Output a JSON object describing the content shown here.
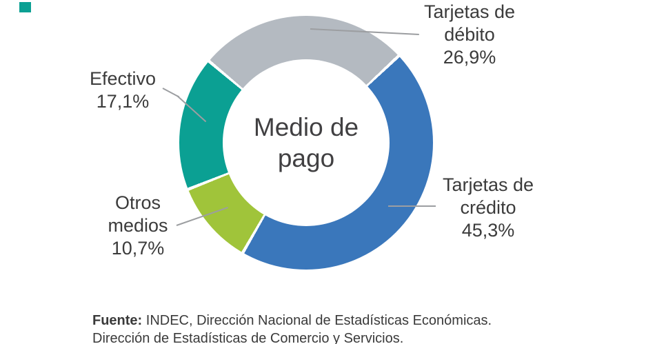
{
  "chart_data": {
    "type": "pie",
    "donut": true,
    "title": "Medio de pago",
    "start_from_top_deg": -50,
    "gap_deg": 1.4,
    "slices": [
      {
        "label": "Tarjetas de débito",
        "value": 26.9,
        "display": "26,9%",
        "color": "#b4bac1"
      },
      {
        "label": "Tarjetas de crédito",
        "value": 45.3,
        "display": "45,3%",
        "color": "#3a77bb"
      },
      {
        "label": "Otros medios",
        "value": 10.7,
        "display": "10,7%",
        "color": "#a0c43a"
      },
      {
        "label": "Efectivo",
        "value": 17.1,
        "display": "17,1%",
        "color": "#0ba093"
      }
    ],
    "legend_position": "callout-labels",
    "grid": false
  },
  "center_label": {
    "line1": "Medio de",
    "line2": "pago"
  },
  "labels": {
    "debito": {
      "line1": "Tarjetas de",
      "line2": "débito",
      "pct": "26,9%"
    },
    "credito": {
      "line1": "Tarjetas de",
      "line2": "crédito",
      "pct": "45,3%"
    },
    "efectivo": {
      "line1": "Efectivo",
      "pct": "17,1%"
    },
    "otros": {
      "line1": "Otros",
      "line2": "medios",
      "pct": "10,7%"
    }
  },
  "source": {
    "prefix": "Fuente:",
    "line1_rest": " INDEC, Dirección Nacional de Estadísticas Económicas.",
    "line2": "Dirección de Estadísticas de Comercio y Servicios."
  },
  "colors": {
    "debito_gray": "#b4bac1",
    "credito_blue": "#3a77bb",
    "otros_green": "#a0c43a",
    "efectivo_teal": "#0ba093",
    "text_dark": "#3b3b3b",
    "leader_gray": "#9c9ea1",
    "corner_mark_teal": "#0ba093"
  }
}
